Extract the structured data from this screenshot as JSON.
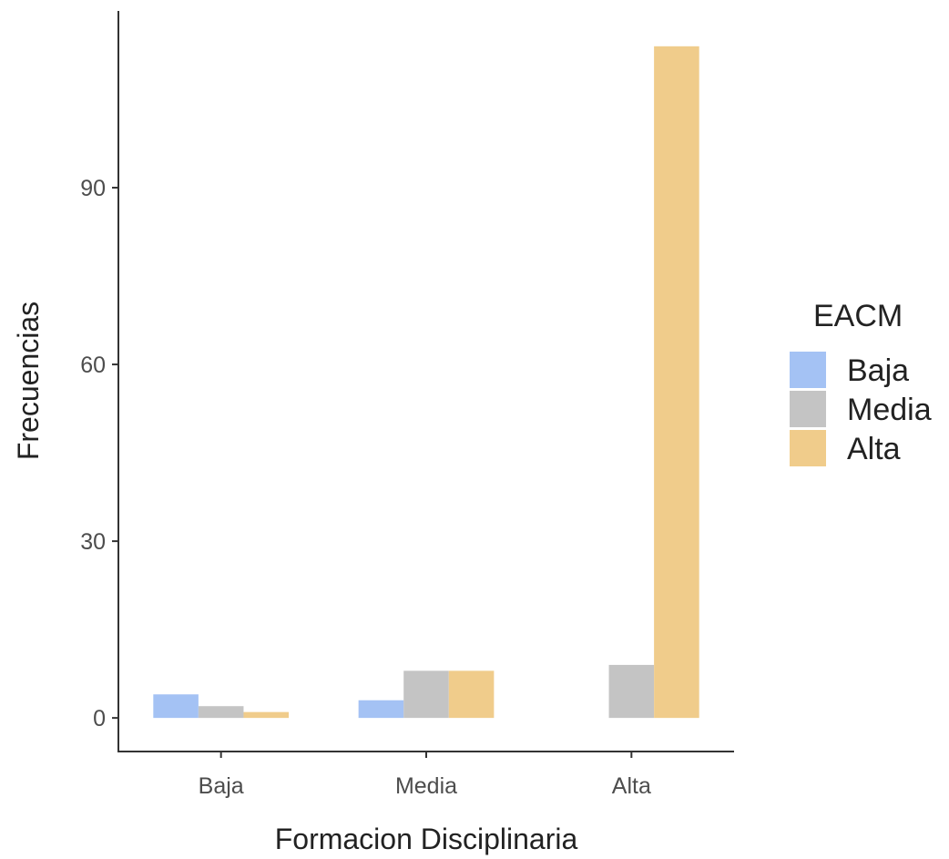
{
  "chart_data": {
    "type": "bar",
    "title": "",
    "xlabel": "Formacion Disciplinaria",
    "ylabel": "Frecuencias",
    "categories": [
      "Baja",
      "Media",
      "Alta"
    ],
    "series": [
      {
        "name": "Baja",
        "color": "#a4c2f4",
        "values": [
          4,
          3,
          0
        ]
      },
      {
        "name": "Media",
        "color": "#c4c4c4",
        "values": [
          2,
          8,
          9
        ]
      },
      {
        "name": "Alta",
        "color": "#f0cc8b",
        "values": [
          1,
          8,
          114
        ]
      }
    ],
    "ylim": [
      -5.7,
      120
    ],
    "yticks": [
      0,
      30,
      60,
      90
    ],
    "legend": {
      "title": "EACM",
      "position": "right"
    },
    "grid": false
  }
}
